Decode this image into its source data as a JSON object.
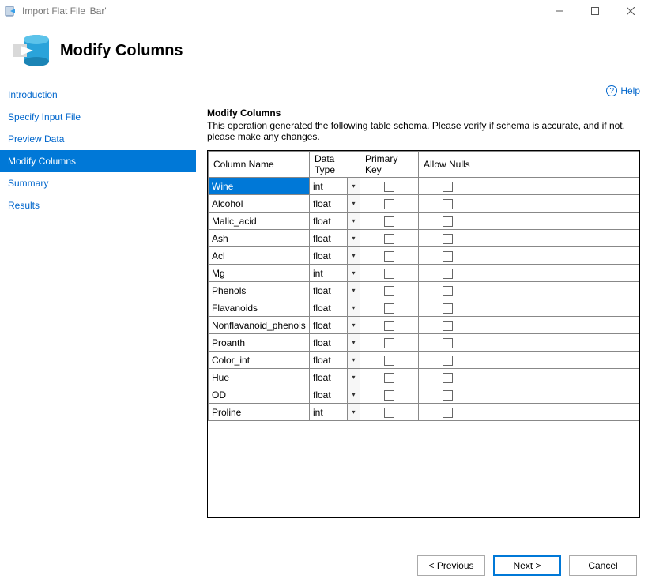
{
  "window": {
    "title": "Import Flat File 'Bar'"
  },
  "header": {
    "title": "Modify Columns"
  },
  "sidebar": {
    "items": [
      {
        "label": "Introduction",
        "active": false
      },
      {
        "label": "Specify Input File",
        "active": false
      },
      {
        "label": "Preview Data",
        "active": false
      },
      {
        "label": "Modify Columns",
        "active": true
      },
      {
        "label": "Summary",
        "active": false
      },
      {
        "label": "Results",
        "active": false
      }
    ]
  },
  "help": {
    "label": "Help"
  },
  "main": {
    "section_title": "Modify Columns",
    "section_desc": "This operation generated the following table schema. Please verify if schema is accurate, and if not, please make any changes."
  },
  "table": {
    "headers": {
      "column_name": "Column Name",
      "data_type": "Data Type",
      "primary_key": "Primary Key",
      "allow_nulls": "Allow Nulls"
    },
    "rows": [
      {
        "name": "Wine",
        "dtype": "int",
        "pk": false,
        "nulls": false,
        "selected": true
      },
      {
        "name": "Alcohol",
        "dtype": "float",
        "pk": false,
        "nulls": false,
        "selected": false
      },
      {
        "name": "Malic_acid",
        "dtype": "float",
        "pk": false,
        "nulls": false,
        "selected": false
      },
      {
        "name": "Ash",
        "dtype": "float",
        "pk": false,
        "nulls": false,
        "selected": false
      },
      {
        "name": "Acl",
        "dtype": "float",
        "pk": false,
        "nulls": false,
        "selected": false
      },
      {
        "name": "Mg",
        "dtype": "int",
        "pk": false,
        "nulls": false,
        "selected": false
      },
      {
        "name": "Phenols",
        "dtype": "float",
        "pk": false,
        "nulls": false,
        "selected": false
      },
      {
        "name": "Flavanoids",
        "dtype": "float",
        "pk": false,
        "nulls": false,
        "selected": false
      },
      {
        "name": "Nonflavanoid_phenols",
        "dtype": "float",
        "pk": false,
        "nulls": false,
        "selected": false
      },
      {
        "name": "Proanth",
        "dtype": "float",
        "pk": false,
        "nulls": false,
        "selected": false
      },
      {
        "name": "Color_int",
        "dtype": "float",
        "pk": false,
        "nulls": false,
        "selected": false
      },
      {
        "name": "Hue",
        "dtype": "float",
        "pk": false,
        "nulls": false,
        "selected": false
      },
      {
        "name": "OD",
        "dtype": "float",
        "pk": false,
        "nulls": false,
        "selected": false
      },
      {
        "name": "Proline",
        "dtype": "int",
        "pk": false,
        "nulls": false,
        "selected": false
      }
    ]
  },
  "footer": {
    "previous": "< Previous",
    "next": "Next >",
    "cancel": "Cancel"
  },
  "colors": {
    "accent": "#0078d7",
    "link": "#0066cc"
  }
}
